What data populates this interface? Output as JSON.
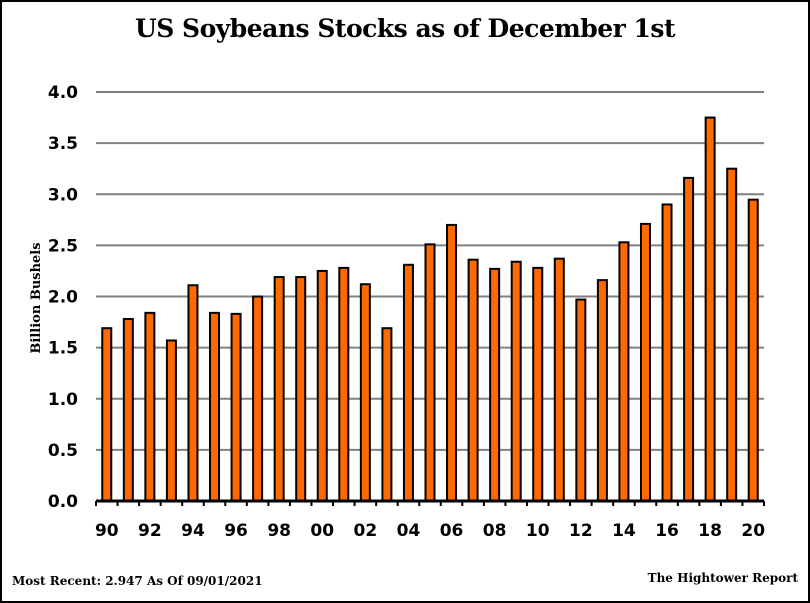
{
  "chart_data": {
    "type": "bar",
    "title": "US Soybeans Stocks as of December 1st",
    "xlabel": "",
    "ylabel": "Billion Bushels",
    "ylim": [
      0,
      4.0
    ],
    "yticks": [
      "0.0",
      "0.5",
      "1.0",
      "1.5",
      "2.0",
      "2.5",
      "3.0",
      "3.5",
      "4.0"
    ],
    "ytick_values": [
      0,
      0.5,
      1.0,
      1.5,
      2.0,
      2.5,
      3.0,
      3.5,
      4.0
    ],
    "grid": true,
    "legend": "none",
    "categories": [
      "90",
      "91",
      "92",
      "93",
      "94",
      "95",
      "96",
      "97",
      "98",
      "99",
      "00",
      "01",
      "02",
      "03",
      "04",
      "05",
      "06",
      "07",
      "08",
      "09",
      "10",
      "11",
      "12",
      "13",
      "14",
      "15",
      "16",
      "17",
      "18",
      "19",
      "20"
    ],
    "xtick_labels": [
      "90",
      "92",
      "94",
      "96",
      "98",
      "00",
      "02",
      "04",
      "06",
      "08",
      "10",
      "12",
      "14",
      "16",
      "18",
      "20"
    ],
    "values": [
      1.69,
      1.78,
      1.84,
      1.57,
      2.11,
      1.84,
      1.83,
      2.0,
      2.19,
      2.19,
      2.25,
      2.28,
      2.12,
      1.69,
      2.31,
      2.51,
      2.7,
      2.36,
      2.27,
      2.34,
      2.28,
      2.37,
      1.97,
      2.16,
      2.53,
      2.71,
      2.9,
      3.16,
      3.75,
      3.25,
      2.947
    ],
    "colors": {
      "bar_fill": "#FF6A00",
      "bar_stroke": "#000000",
      "grid": "#808080"
    }
  },
  "footer": {
    "most_recent": "Most Recent: 2.947 As Of 09/01/2021",
    "source": "The Hightower Report"
  }
}
